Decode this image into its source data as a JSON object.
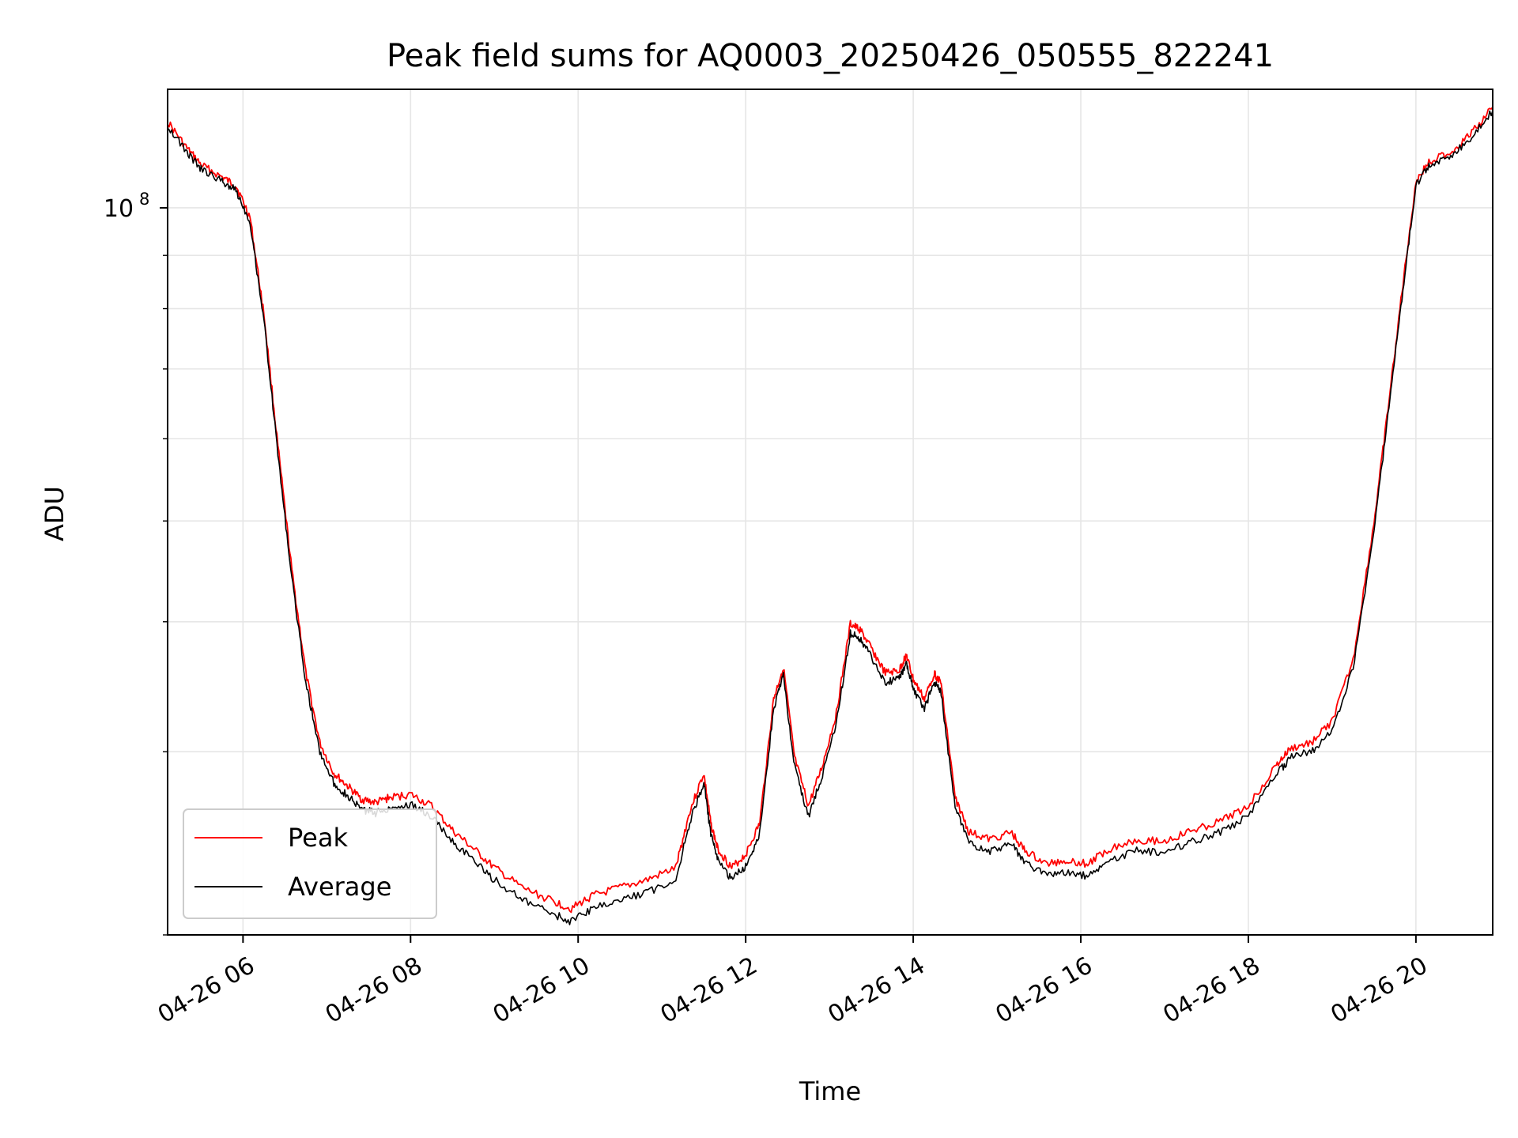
{
  "chart_data": {
    "type": "line",
    "title": "Peak field sums for AQ0003_20250426_050555_822241",
    "xlabel": "Time",
    "ylabel": "ADU",
    "y_scale": "log",
    "ylim": [
      20000000,
      130000000
    ],
    "xlim": [
      "2025-04-26 05:06",
      "2025-04-26 20:55"
    ],
    "x_ticks": [
      {
        "t": "2025-04-26 06:00",
        "label": "04-26 06"
      },
      {
        "t": "2025-04-26 08:00",
        "label": "04-26 08"
      },
      {
        "t": "2025-04-26 10:00",
        "label": "04-26 10"
      },
      {
        "t": "2025-04-26 12:00",
        "label": "04-26 12"
      },
      {
        "t": "2025-04-26 14:00",
        "label": "04-26 14"
      },
      {
        "t": "2025-04-26 16:00",
        "label": "04-26 16"
      },
      {
        "t": "2025-04-26 18:00",
        "label": "04-26 18"
      },
      {
        "t": "2025-04-26 20:00",
        "label": "04-26 20"
      }
    ],
    "y_major_tick": {
      "value": 100000000,
      "label_base": "10",
      "label_exp": "8"
    },
    "y_minor_ticks": [
      20000000,
      30000000,
      40000000,
      50000000,
      60000000,
      70000000,
      80000000,
      90000000
    ],
    "grid": true,
    "legend": "lower-left",
    "series": [
      {
        "name": "Peak",
        "color": "#ff0000"
      },
      {
        "name": "Average",
        "color": "#000000"
      }
    ],
    "x": [
      "2025-04-26 05:06",
      "2025-04-26 05:20",
      "2025-04-26 05:30",
      "2025-04-26 05:45",
      "2025-04-26 05:55",
      "2025-04-26 06:05",
      "2025-04-26 06:15",
      "2025-04-26 06:25",
      "2025-04-26 06:35",
      "2025-04-26 06:45",
      "2025-04-26 06:55",
      "2025-04-26 07:05",
      "2025-04-26 07:15",
      "2025-04-26 07:25",
      "2025-04-26 07:35",
      "2025-04-26 07:45",
      "2025-04-26 08:00",
      "2025-04-26 08:15",
      "2025-04-26 08:30",
      "2025-04-26 08:45",
      "2025-04-26 09:00",
      "2025-04-26 09:20",
      "2025-04-26 09:40",
      "2025-04-26 09:55",
      "2025-04-26 10:10",
      "2025-04-26 10:30",
      "2025-04-26 10:50",
      "2025-04-26 11:10",
      "2025-04-26 11:20",
      "2025-04-26 11:30",
      "2025-04-26 11:35",
      "2025-04-26 11:40",
      "2025-04-26 11:50",
      "2025-04-26 12:00",
      "2025-04-26 12:10",
      "2025-04-26 12:20",
      "2025-04-26 12:27",
      "2025-04-26 12:35",
      "2025-04-26 12:45",
      "2025-04-26 12:55",
      "2025-04-26 13:05",
      "2025-04-26 13:15",
      "2025-04-26 13:22",
      "2025-04-26 13:30",
      "2025-04-26 13:40",
      "2025-04-26 13:50",
      "2025-04-26 13:55",
      "2025-04-26 14:00",
      "2025-04-26 14:08",
      "2025-04-26 14:15",
      "2025-04-26 14:20",
      "2025-04-26 14:30",
      "2025-04-26 14:40",
      "2025-04-26 14:55",
      "2025-04-26 15:10",
      "2025-04-26 15:20",
      "2025-04-26 15:35",
      "2025-04-26 15:50",
      "2025-04-26 16:05",
      "2025-04-26 16:20",
      "2025-04-26 16:40",
      "2025-04-26 17:00",
      "2025-04-26 17:20",
      "2025-04-26 17:40",
      "2025-04-26 18:00",
      "2025-04-26 18:20",
      "2025-04-26 18:30",
      "2025-04-26 18:45",
      "2025-04-26 19:00",
      "2025-04-26 19:15",
      "2025-04-26 19:30",
      "2025-04-26 19:40",
      "2025-04-26 19:50",
      "2025-04-26 20:00",
      "2025-04-26 20:10",
      "2025-04-26 20:25",
      "2025-04-26 20:40",
      "2025-04-26 20:55"
    ],
    "values_average": [
      120000000,
      113000000,
      109000000,
      106000000,
      104000000,
      97000000,
      78000000,
      58000000,
      44000000,
      35000000,
      30000000,
      28000000,
      27200000,
      26400000,
      26200000,
      26500000,
      26700000,
      26000000,
      24600000,
      23600000,
      22600000,
      21600000,
      21000000,
      20600000,
      21200000,
      21600000,
      22000000,
      22600000,
      25700000,
      28000000,
      25000000,
      23600000,
      22600000,
      23300000,
      25000000,
      33000000,
      35500000,
      29000000,
      26000000,
      28500000,
      32000000,
      39000000,
      38500000,
      37000000,
      35000000,
      35200000,
      36500000,
      34500000,
      33000000,
      35000000,
      34200000,
      26500000,
      24500000,
      24100000,
      24500000,
      23500000,
      22800000,
      23000000,
      22800000,
      23600000,
      24100000,
      24000000,
      24600000,
      25100000,
      26000000,
      28500000,
      29600000,
      30000000,
      31500000,
      36000000,
      49000000,
      63000000,
      82000000,
      105000000,
      110000000,
      112000000,
      117000000,
      124000000
    ],
    "values_peak": [
      121000000,
      114000000,
      110000000,
      107000000,
      105000000,
      98000000,
      79000000,
      59000000,
      44800000,
      35700000,
      30600000,
      28600000,
      27800000,
      27000000,
      26800000,
      27100000,
      27300000,
      26600000,
      25200000,
      24200000,
      23200000,
      22200000,
      21600000,
      21200000,
      21800000,
      22200000,
      22600000,
      23200000,
      26300000,
      28600000,
      25600000,
      24200000,
      23200000,
      23900000,
      25600000,
      33700000,
      36200000,
      29600000,
      26600000,
      29100000,
      32700000,
      39800000,
      39300000,
      37700000,
      35700000,
      35900000,
      37200000,
      35200000,
      33700000,
      35700000,
      34900000,
      27100000,
      25100000,
      24700000,
      25100000,
      24100000,
      23400000,
      23600000,
      23400000,
      24200000,
      24700000,
      24600000,
      25200000,
      25700000,
      26600000,
      29100000,
      30200000,
      30600000,
      32100000,
      36700000,
      49800000,
      64000000,
      83000000,
      106000000,
      111000000,
      113000000,
      118000000,
      125000000
    ]
  }
}
